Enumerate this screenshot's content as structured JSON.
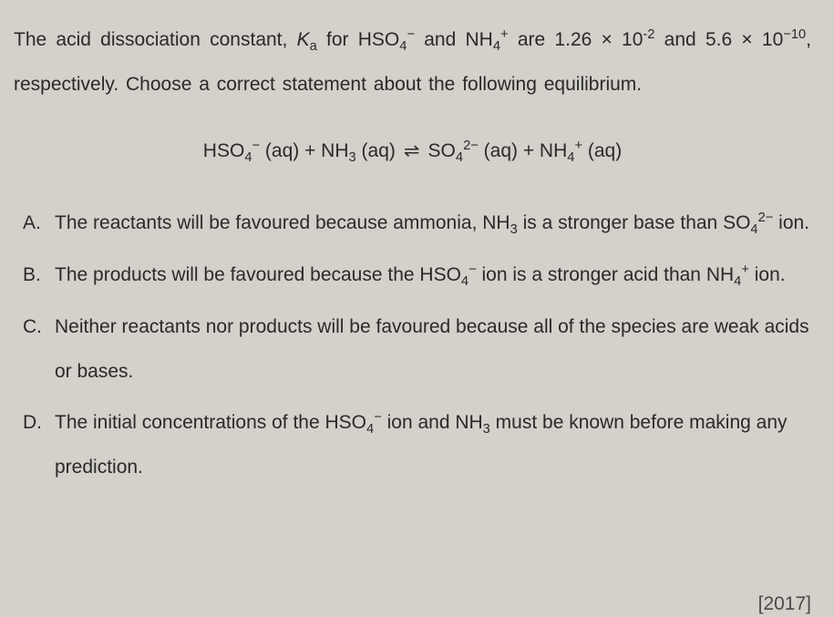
{
  "question": {
    "line1_part1": "The acid dissociation constant, ",
    "ka_symbol": "K",
    "ka_sub": "a",
    "line1_part2": " for HSO",
    "hso4_sub": "4",
    "hso4_sup": "−",
    "line1_part3": " and NH",
    "nh4_sub": "4",
    "nh4_sup": "+",
    "line1_part4": " are 1.26 × 10",
    "exp1": "-2",
    "line1_part5": " and",
    "line2_part1": "5.6 × 10",
    "exp2": "−10",
    "line2_part2": ", respectively. Choose a correct statement about the following",
    "line3": "equilibrium."
  },
  "equation": {
    "hso4": "HSO",
    "hso4_sub": "4",
    "hso4_sup": "−",
    "aq1": " (aq)  +  NH",
    "nh3_sub": "3",
    "aq2": " (aq)  ",
    "arrow": "⇌",
    "so4": "  SO",
    "so4_sub": "4",
    "so4_sup": "2−",
    "aq3": " (aq)  +  NH",
    "nh4_sub": "4",
    "nh4_sup": "+",
    "aq4": " (aq)"
  },
  "options": [
    {
      "letter": "A.",
      "text_parts": [
        "The reactants will be favoured because ammonia, NH",
        "3",
        " is a stronger base than SO",
        "4",
        "2−",
        " ion."
      ]
    },
    {
      "letter": "B.",
      "text_parts": [
        "The products will be favoured because the HSO",
        "4",
        "−",
        " ion is a stronger acid than NH",
        "4",
        "+",
        " ion."
      ]
    },
    {
      "letter": "C.",
      "text_parts": [
        "Neither reactants nor products will be favoured because all of the species are weak acids or bases."
      ]
    },
    {
      "letter": "D.",
      "text_parts": [
        "The initial concentrations of the HSO",
        "4",
        "−",
        " ion and NH",
        "3",
        " must be known before making any prediction."
      ]
    }
  ],
  "year": "[2017]",
  "styling": {
    "background_color": "#d4d0ca",
    "text_color": "#2a2a2a",
    "font_size_main": 21,
    "line_height": 2.3,
    "font_family": "Arial"
  }
}
